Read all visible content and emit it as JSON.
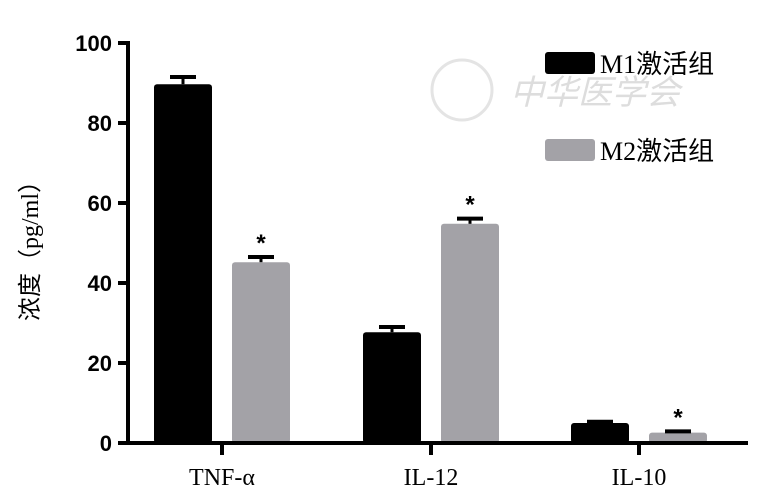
{
  "chart_data": {
    "type": "bar",
    "title": "",
    "xlabel": "",
    "ylabel": "浓度（pg/ml）",
    "ylim": [
      0,
      100
    ],
    "yticks": [
      0,
      20,
      40,
      60,
      80,
      100
    ],
    "categories": [
      "TNF-α",
      "IL-12",
      "IL-10"
    ],
    "series": [
      {
        "name": "M1激活组",
        "color": "#000000",
        "values": [
          89.7,
          27.7,
          5.0
        ],
        "errors": [
          1.8,
          1.3,
          0.3
        ],
        "significance": [
          "",
          "",
          ""
        ]
      },
      {
        "name": "M2激活组",
        "color": "#a3a2a7",
        "values": [
          45.2,
          54.8,
          2.6
        ],
        "errors": [
          1.3,
          1.3,
          0.3
        ],
        "significance": [
          "*",
          "*",
          "*"
        ]
      }
    ],
    "legend_position": "top-right",
    "grid": false
  },
  "watermark": "中华医学会"
}
